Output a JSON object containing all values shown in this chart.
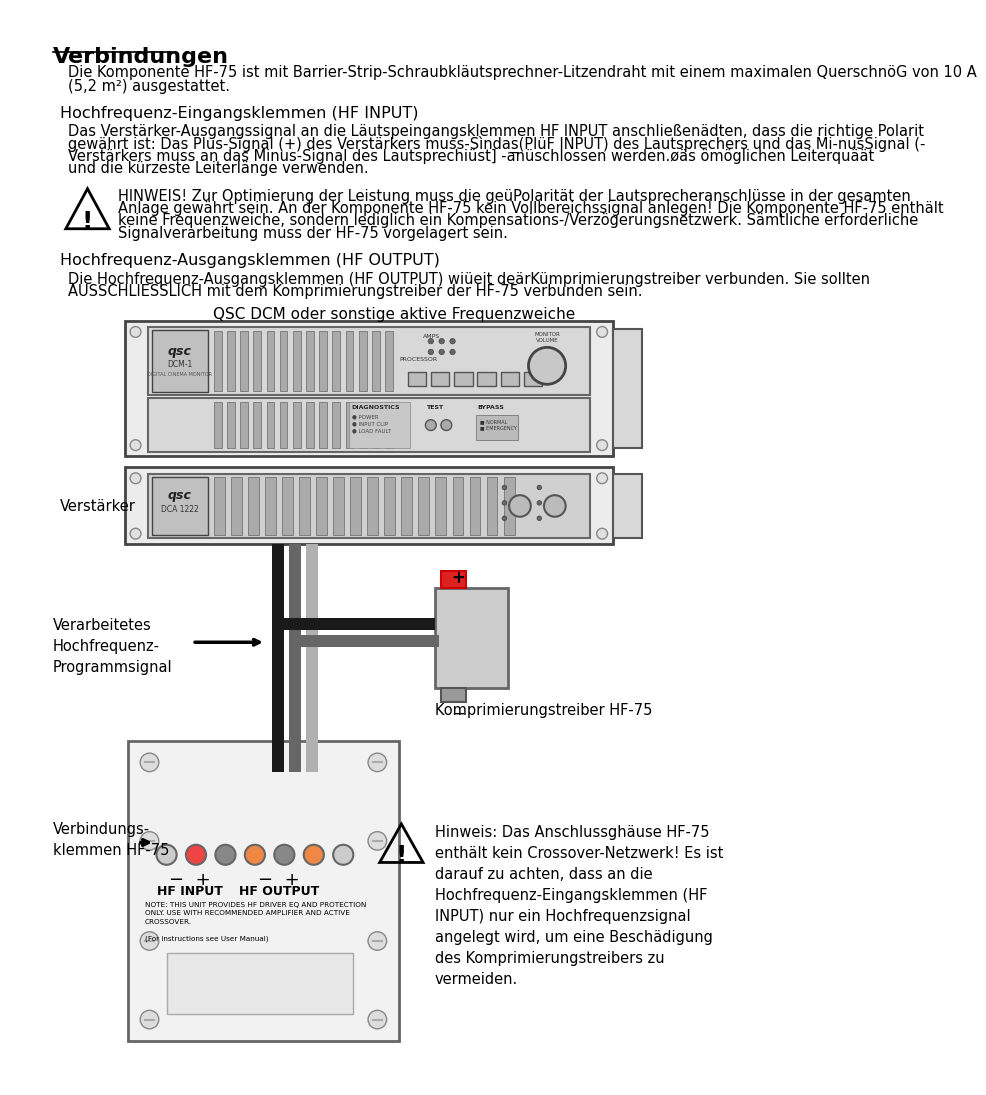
{
  "title": "Verbindungen",
  "bg_color": "#ffffff",
  "text_color": "#000000",
  "section1_title": "Hochfrequenz-Eingangsklemmen (HF INPUT)",
  "section2_title": "Hochfrequenz-Ausgangsklemmen (HF OUTPUT)",
  "diagram_label": "QSC DCM oder sonstige aktive Frequenzweiche",
  "label_verstaerker": "Verstärker",
  "label_verarbeitetes": "Verarbeitetes\nHochfrequenz-\nProgrammsignal",
  "label_komprimierung": "Komprimierungstreiber HF-75",
  "label_verbindung": "Verbindungs-\nklemmen HF-75",
  "para1_line1": "Die Komponente HF-75 ist mit Barrier-Strip-Schraubkläutsprechner-Litzendraht mit einem maximalen QuerschnöG von 10 A",
  "para1_line2": "(5,2 m²) ausgestattet.",
  "para2_line1": "Das Verstärker-Ausgangssignal an die Läutspeingangsklemmen HF INPUT anschließenädten, dass die richtige Polarit",
  "para2_line2": "gewährt ist: Das Plus-Signal (+) des Verstärkers muss-Sìndas̲(PlüF INPUT) des Lautsprechers und das Mi­nusSignal (-",
  "para2_line3": "Verstärkers muss an das Minus-Signal des Lautsprechiüst] -anüschlossen werden.øäs ömöglichen Leiterquäät",
  "para2_line4": "und die kürzeste Leiterlänge verwenden.",
  "warning1_line1": "HINWEIS! Zur Optimierung der Leistung muss die geüPolarität der Lautsprecheranschlüsse in der gesamten",
  "warning1_line2": "Anlage gewährt sein. An der Komponente HF-75 kein Vollbereichssignal anlegen! Die Komponente HF-75 enthält",
  "warning1_line3": "keine Frequenzweiche, sondern lediglich ein Kompensations-/Verzögerungsnetzwerk. Sämtliche erforderliche",
  "warning1_line4": "Signalverarbeitung muss der HF-75 vorgelagert sein.",
  "para3_line1": "Die Hochfrequenz-Ausgangsklemmen (HF OUTPUT) wiüeit deärKümprimierungstreiber verbunden. Sie sollten",
  "para3_line2": "AUSSCHLIESSLICH mit dem Komprimierungstreiber der HF-75 verbunden sein.",
  "warning2_line1": "Hinweis: Das Anschlussghäuse HF-75",
  "warning2_line2": "enthält kein Crossover-Netzwerk! Es ist",
  "warning2_line3": "darauf zu achten, dass an die",
  "warning2_line4": "Hochfrequenz-Eingangsklemmen (HF",
  "warning2_line5": "INPUT) nur ein Hochfrequenzsignal",
  "warning2_line6": "angelegt wird, um eine Beschädigung",
  "warning2_line7": "des Komprimierungstreibers zu",
  "warning2_line8": "vermeiden.",
  "note_line1": "NOTE: THIS UNIT PROVIDES HF DRIVER EQ AND PROTECTION",
  "note_line2": "ONLY. USE WITH RECOMMENDED AMPLIFIER AND ACTIVE",
  "note_line3": "CROSSOVER.",
  "note_line4": "(For instructions see User Manual)"
}
